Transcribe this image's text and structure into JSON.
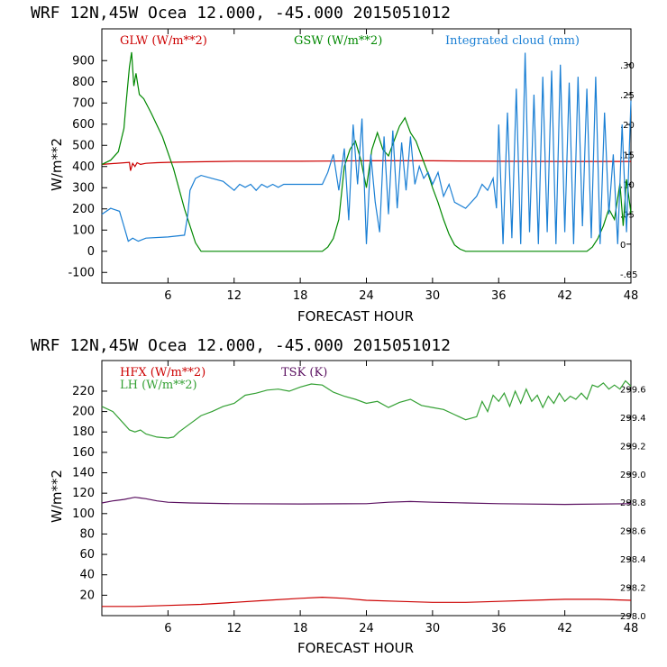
{
  "chart_data": [
    {
      "type": "line",
      "title": "WRF   12N,45W Ocea  12.000, -45.000  2015051012",
      "xlabel": "FORECAST HOUR",
      "ylabel": "W/m**2",
      "xlim": [
        0,
        48
      ],
      "ylim": [
        -150,
        1050
      ],
      "y2lim": [
        -0.065,
        0.36
      ],
      "x_ticks": [
        6,
        12,
        18,
        24,
        30,
        36,
        42,
        48
      ],
      "y_ticks": [
        -100,
        0,
        100,
        200,
        300,
        400,
        500,
        600,
        700,
        800,
        900
      ],
      "y2_ticks": [
        -0.05,
        0.0,
        0.05,
        0.1,
        0.15,
        0.2,
        0.25,
        0.3
      ],
      "y2_tick_labels": [
        "-.05",
        "0",
        ".05",
        ".10",
        ".15",
        ".20",
        ".25",
        ".30"
      ],
      "legend": [
        "GLW (W/m**2)",
        "GSW (W/m**2)",
        "Integrated cloud (mm)"
      ],
      "series": [
        {
          "name": "GLW (W/m**2)",
          "axis": "left",
          "color": "#cc0000",
          "x": [
            0,
            2.5,
            2.6,
            2.8,
            3.0,
            3.2,
            3.5,
            4,
            5,
            6,
            8,
            12,
            18,
            24,
            30,
            36,
            42,
            48
          ],
          "y": [
            410,
            420,
            380,
            415,
            400,
            418,
            410,
            415,
            418,
            420,
            422,
            425,
            425,
            427,
            427,
            425,
            424,
            424
          ]
        },
        {
          "name": "GSW (W/m**2)",
          "axis": "left",
          "color": "#008800",
          "x": [
            0,
            0.8,
            1.5,
            2.0,
            2.2,
            2.5,
            2.7,
            2.9,
            3.1,
            3.4,
            3.8,
            4.2,
            4.5,
            5.5,
            6.5,
            7.5,
            8.5,
            9.0,
            12,
            18,
            20.0,
            20.5,
            21.0,
            21.5,
            22.0,
            22.5,
            23.0,
            23.5,
            24.0,
            24.5,
            25.0,
            25.5,
            26.0,
            26.5,
            27.0,
            27.5,
            28.0,
            28.5,
            29.0,
            29.5,
            30.0,
            30.5,
            31.0,
            31.5,
            32.0,
            32.5,
            33.0,
            34,
            38,
            42,
            44.0,
            44.5,
            45.0,
            45.5,
            46.0,
            46.5,
            47.0,
            47.3,
            47.6,
            48.0
          ],
          "y": [
            410,
            430,
            470,
            580,
            700,
            870,
            940,
            780,
            840,
            740,
            720,
            680,
            650,
            540,
            390,
            200,
            40,
            0,
            0,
            0,
            0,
            20,
            60,
            150,
            400,
            480,
            520,
            430,
            300,
            480,
            560,
            480,
            450,
            520,
            590,
            630,
            560,
            520,
            450,
            380,
            300,
            230,
            150,
            80,
            30,
            10,
            0,
            0,
            0,
            0,
            0,
            20,
            60,
            120,
            200,
            150,
            320,
            120,
            340,
            180
          ]
        },
        {
          "name": "Integrated cloud (mm)",
          "axis": "right",
          "color": "#1a7fd4",
          "x": [
            0,
            0.8,
            1.6,
            2.0,
            2.4,
            2.8,
            3.3,
            4,
            6,
            7.5,
            7.8,
            8.0,
            8.5,
            9.0,
            10,
            11,
            12,
            12.5,
            13,
            13.5,
            14,
            14.5,
            15,
            15.5,
            16,
            16.5,
            17,
            18,
            19,
            20,
            20.5,
            21.0,
            21.5,
            22.0,
            22.4,
            22.8,
            23.2,
            23.6,
            24.0,
            24.4,
            24.8,
            25.2,
            25.6,
            26.0,
            26.4,
            26.8,
            27.2,
            27.6,
            28.0,
            28.4,
            28.8,
            29.2,
            29.6,
            30.0,
            30.5,
            31.0,
            31.5,
            32,
            33,
            34,
            34.5,
            35.0,
            35.5,
            35.8,
            36.0,
            36.4,
            36.8,
            37.2,
            37.6,
            38.0,
            38.4,
            38.8,
            39.2,
            39.6,
            40.0,
            40.4,
            40.8,
            41.2,
            41.6,
            42.0,
            42.4,
            42.8,
            43.2,
            43.6,
            44.0,
            44.4,
            44.8,
            45.2,
            45.6,
            46.0,
            46.4,
            46.8,
            47.2,
            47.6,
            48.0
          ],
          "y": [
            0.05,
            0.06,
            0.055,
            0.03,
            0.005,
            0.01,
            0.005,
            0.01,
            0.012,
            0.015,
            0.05,
            0.09,
            0.11,
            0.115,
            0.11,
            0.105,
            0.09,
            0.1,
            0.095,
            0.1,
            0.09,
            0.1,
            0.095,
            0.1,
            0.095,
            0.1,
            0.1,
            0.1,
            0.1,
            0.1,
            0.12,
            0.15,
            0.09,
            0.16,
            0.04,
            0.2,
            0.1,
            0.21,
            0.0,
            0.15,
            0.07,
            0.02,
            0.18,
            0.05,
            0.19,
            0.06,
            0.17,
            0.09,
            0.18,
            0.1,
            0.13,
            0.11,
            0.12,
            0.1,
            0.12,
            0.08,
            0.1,
            0.07,
            0.06,
            0.08,
            0.1,
            0.09,
            0.11,
            0.06,
            0.2,
            0.0,
            0.22,
            0.01,
            0.26,
            0.0,
            0.32,
            0.02,
            0.25,
            0.0,
            0.28,
            0.02,
            0.29,
            0.0,
            0.3,
            0.02,
            0.27,
            0.0,
            0.28,
            0.03,
            0.26,
            0.01,
            0.28,
            0.0,
            0.22,
            0.05,
            0.15,
            0.0,
            0.2,
            0.02,
            0.24
          ]
        }
      ]
    },
    {
      "type": "line",
      "title": "WRF   12N,45W Ocea  12.000, -45.000  2015051012",
      "xlabel": "FORECAST HOUR",
      "ylabel": "W/m**2",
      "xlim": [
        0,
        48
      ],
      "ylim": [
        0,
        250
      ],
      "y2lim": [
        298.0,
        299.8
      ],
      "x_ticks": [
        6,
        12,
        18,
        24,
        30,
        36,
        42,
        48
      ],
      "y_ticks": [
        20,
        40,
        60,
        80,
        100,
        120,
        140,
        160,
        180,
        200,
        220
      ],
      "y2_ticks": [
        298.0,
        298.2,
        298.4,
        298.6,
        298.8,
        299.0,
        299.2,
        299.4,
        299.6
      ],
      "y2_tick_labels": [
        "298.0",
        "298.2",
        "298.4",
        "298.6",
        "298.8",
        "299.0",
        "299.2",
        "299.4",
        "299.6"
      ],
      "legend": [
        "HFX (W/m**2)",
        "LH  (W/m**2)",
        "TSK (K)"
      ],
      "series": [
        {
          "name": "HFX (W/m**2)",
          "axis": "left",
          "color": "#cc0000",
          "x": [
            0,
            3,
            6,
            9,
            12,
            15,
            18,
            20,
            22,
            24,
            27,
            30,
            33,
            36,
            39,
            42,
            45,
            48
          ],
          "y": [
            9,
            9,
            10,
            11,
            13,
            15,
            17,
            18,
            17,
            15,
            14,
            13,
            13,
            14,
            15,
            16,
            16,
            15
          ]
        },
        {
          "name": "LH  (W/m**2)",
          "axis": "left",
          "color": "#33a033",
          "x": [
            0,
            1,
            2,
            2.5,
            3,
            3.5,
            4,
            5,
            6,
            6.5,
            7,
            8,
            9,
            10,
            11,
            12,
            12.5,
            13,
            14,
            15,
            16,
            17,
            18,
            19,
            20,
            21,
            22,
            23,
            24,
            25,
            26,
            27,
            28,
            29,
            30,
            31,
            32,
            33,
            34,
            34.5,
            35,
            35.5,
            36,
            36.5,
            37,
            37.5,
            38,
            38.5,
            39,
            39.5,
            40,
            40.5,
            41,
            41.5,
            42,
            42.5,
            43,
            43.5,
            44,
            44.5,
            45,
            45.5,
            46,
            46.5,
            47,
            47.5,
            48
          ],
          "y": [
            205,
            200,
            188,
            182,
            180,
            182,
            178,
            175,
            174,
            175,
            180,
            188,
            196,
            200,
            205,
            208,
            212,
            216,
            218,
            221,
            222,
            220,
            224,
            227,
            226,
            219,
            215,
            212,
            208,
            210,
            204,
            209,
            212,
            206,
            204,
            202,
            197,
            192,
            195,
            210,
            200,
            216,
            210,
            218,
            205,
            220,
            208,
            222,
            210,
            216,
            204,
            215,
            208,
            218,
            210,
            215,
            212,
            218,
            212,
            226,
            224,
            228,
            222,
            226,
            222,
            230,
            225
          ]
        },
        {
          "name": "TSK (K)",
          "axis": "right",
          "color": "#5a1060",
          "x": [
            0,
            1,
            2,
            3,
            3.5,
            4,
            5,
            6,
            8,
            12,
            18,
            24,
            26,
            28,
            30,
            33,
            36,
            42,
            48
          ],
          "y": [
            298.795,
            298.81,
            298.82,
            298.835,
            298.83,
            298.825,
            298.81,
            298.8,
            298.795,
            298.79,
            298.788,
            298.79,
            298.8,
            298.805,
            298.8,
            298.795,
            298.79,
            298.785,
            298.79
          ]
        }
      ]
    }
  ]
}
